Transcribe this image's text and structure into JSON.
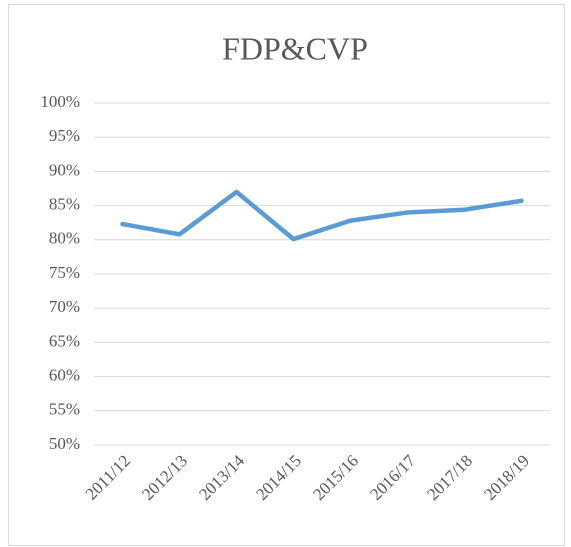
{
  "chart_data": {
    "type": "line",
    "title": "FDP&CVP",
    "categories": [
      "2011/12",
      "2012/13",
      "2013/14",
      "2014/15",
      "2015/16",
      "2016/17",
      "2017/18",
      "2018/19"
    ],
    "series": [
      {
        "name": "FDP&CVP",
        "color": "#5b9bd5",
        "values": [
          82.3,
          80.8,
          87.0,
          80.1,
          82.8,
          84.0,
          84.4,
          85.7
        ]
      }
    ],
    "ylim": [
      50,
      100
    ],
    "yticks": [
      {
        "value": 50,
        "label": "50%"
      },
      {
        "value": 55,
        "label": "55%"
      },
      {
        "value": 60,
        "label": "60%"
      },
      {
        "value": 65,
        "label": "65%"
      },
      {
        "value": 70,
        "label": "70%"
      },
      {
        "value": 75,
        "label": "75%"
      },
      {
        "value": 80,
        "label": "80%"
      },
      {
        "value": 85,
        "label": "85%"
      },
      {
        "value": 90,
        "label": "90%"
      },
      {
        "value": 95,
        "label": "95%"
      },
      {
        "value": 100,
        "label": "100%"
      }
    ],
    "grid": true
  }
}
